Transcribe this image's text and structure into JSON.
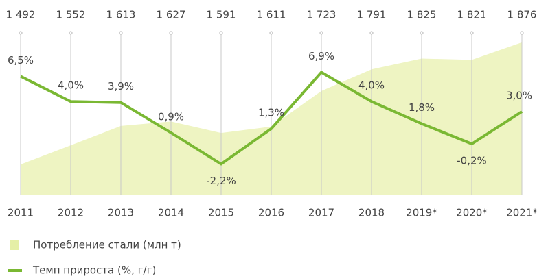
{
  "chart_data": {
    "type": "combo",
    "categories": [
      "2011",
      "2012",
      "2013",
      "2014",
      "2015",
      "2016",
      "2017",
      "2018",
      "2019*",
      "2020*",
      "2021*"
    ],
    "series": [
      {
        "name": "Потребление стали (млн т)",
        "type": "area",
        "color": "#eef4c2",
        "values": [
          1492,
          1552,
          1613,
          1627,
          1591,
          1611,
          1723,
          1791,
          1825,
          1821,
          1876
        ],
        "value_labels": [
          "1 492",
          "1 552",
          "1 613",
          "1 627",
          "1 591",
          "1 611",
          "1 723",
          "1 791",
          "1 825",
          "1 821",
          "1 876"
        ]
      },
      {
        "name": "Темп прироста (%, г/г)",
        "type": "line",
        "axis": "y2",
        "color": "#7ab833",
        "values": [
          6.5,
          4.0,
          3.9,
          0.9,
          -2.2,
          1.3,
          6.9,
          4.0,
          1.8,
          -0.2,
          3.0
        ],
        "value_labels": [
          "6,5%",
          "4,0%",
          "3,9%",
          "0,9%",
          "-2,2%",
          "1,3%",
          "6,9%",
          "4,0%",
          "1,8%",
          "-0,2%",
          "3,0%"
        ]
      }
    ],
    "ylim": [
      1395,
      1880
    ],
    "y2lim": [
      -5.3,
      10
    ]
  }
}
